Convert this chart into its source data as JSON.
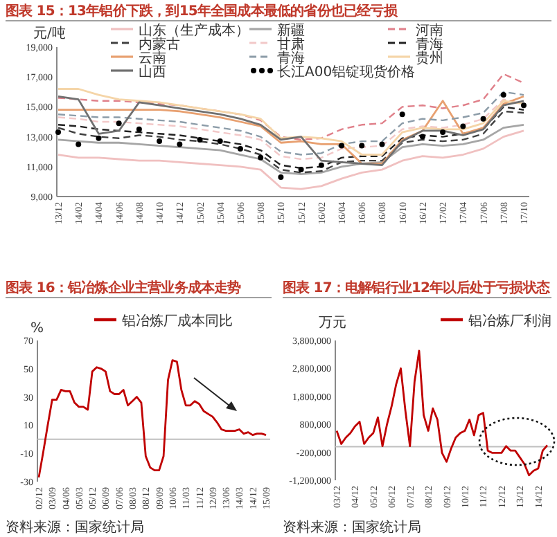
{
  "chart_data": [
    {
      "type": "line",
      "title": "图表 15：13年铝价下跌，到15年全国成本最低的省份也已经亏损",
      "ylabel": "元/吨",
      "categories": [
        "13/12",
        "14/02",
        "14/04",
        "14/06",
        "14/08",
        "14/10",
        "14/12",
        "15/02",
        "15/04",
        "15/06",
        "15/08",
        "15/10",
        "15/12",
        "16/02",
        "16/04",
        "16/06",
        "16/08",
        "16/10",
        "16/12",
        "17/02",
        "17/04",
        "17/06",
        "17/08",
        "17/10"
      ],
      "ylim": [
        9000,
        19000
      ],
      "yticks": [
        {
          "value": 9000,
          "label": "9,000"
        },
        {
          "value": 11000,
          "label": "11,000"
        },
        {
          "value": 13000,
          "label": "13,000"
        },
        {
          "value": 15000,
          "label": "15,000"
        },
        {
          "value": 17000,
          "label": "17,000"
        },
        {
          "value": 19000,
          "label": "19,000"
        }
      ],
      "legend": "top",
      "series": [
        {
          "name": "山东（生产成本）",
          "color": "#f0c0c0",
          "line_style": "solid",
          "values": [
            11800,
            11600,
            11600,
            11500,
            11400,
            11400,
            11300,
            11200,
            11100,
            11000,
            10800,
            9600,
            9500,
            9700,
            10200,
            10600,
            10800,
            11400,
            11700,
            11600,
            11800,
            12200,
            13000,
            13400
          ]
        },
        {
          "name": "新疆",
          "color": "#a6a6a6",
          "line_style": "solid",
          "values": [
            12800,
            12700,
            12600,
            12600,
            12500,
            12400,
            12300,
            12200,
            12100,
            11800,
            11500,
            10600,
            10500,
            10600,
            11000,
            11200,
            11300,
            12300,
            12500,
            12400,
            12500,
            12800,
            13600,
            13800
          ]
        },
        {
          "name": "河南",
          "color": "#e0808a",
          "line_style": "dashed",
          "values": [
            15600,
            15500,
            15400,
            15400,
            15300,
            15200,
            15100,
            14900,
            14700,
            14500,
            14100,
            13000,
            12800,
            12900,
            13500,
            13800,
            13900,
            15000,
            15100,
            14900,
            15100,
            15500,
            17200,
            16600
          ]
        },
        {
          "name": "内蒙古",
          "color": "#404040",
          "line_style": "dashed",
          "values": [
            13600,
            13200,
            13000,
            12900,
            13100,
            13000,
            12800,
            12700,
            12500,
            12200,
            11800,
            10800,
            10600,
            10700,
            11300,
            11400,
            11400,
            12600,
            12800,
            12700,
            12800,
            13200,
            14700,
            14600
          ]
        },
        {
          "name": "甘肃",
          "color": "#f2c8c8",
          "line_style": "dashed",
          "values": [
            14300,
            14200,
            14000,
            14000,
            13900,
            13800,
            13700,
            13500,
            13300,
            13100,
            12800,
            11700,
            11500,
            11600,
            12200,
            12300,
            12400,
            13500,
            13700,
            13600,
            13800,
            14200,
            15500,
            15200
          ]
        },
        {
          "name": "青海",
          "color": "#222222",
          "line_style": "dashed",
          "values": [
            13800,
            13700,
            13500,
            13400,
            13300,
            13200,
            13100,
            12900,
            12700,
            12500,
            12100,
            11100,
            10900,
            11000,
            11600,
            11700,
            11700,
            12900,
            13100,
            13000,
            13200,
            13500,
            15000,
            14800
          ]
        },
        {
          "name": "云南",
          "color": "#e8a070",
          "line_style": "solid",
          "values": [
            14800,
            14800,
            14800,
            14800,
            14800,
            14800,
            14700,
            14500,
            14300,
            14000,
            13700,
            12600,
            12700,
            12500,
            12500,
            11200,
            11200,
            12800,
            13400,
            15400,
            13200,
            13600,
            15200,
            15700
          ]
        },
        {
          "name": "青海",
          "color": "#8c9ca8",
          "line_style": "dashed",
          "values": [
            14500,
            14400,
            14300,
            14300,
            14200,
            14100,
            14000,
            13800,
            13600,
            13400,
            13000,
            12000,
            11800,
            11900,
            12500,
            12700,
            12700,
            13900,
            14200,
            14100,
            14300,
            14600,
            16000,
            15800
          ]
        },
        {
          "name": "贵州",
          "color": "#f5d5a8",
          "line_style": "solid",
          "values": [
            16200,
            16200,
            15800,
            15500,
            15400,
            15300,
            15100,
            14900,
            14700,
            14500,
            14200,
            12900,
            13000,
            12900,
            12700,
            11800,
            11800,
            13300,
            13600,
            13500,
            13500,
            13900,
            15400,
            15200
          ]
        },
        {
          "name": "山西",
          "color": "#707070",
          "line_style": "solid",
          "values": [
            15700,
            15500,
            13200,
            13400,
            15300,
            15100,
            14900,
            14700,
            14500,
            14200,
            13800,
            12800,
            13000,
            11400,
            11300,
            11200,
            11100,
            12700,
            13400,
            13400,
            13100,
            13500,
            15100,
            15400
          ]
        },
        {
          "name": "长江A00铝锭现货价格",
          "color": "#000000",
          "type": "scatter",
          "marker": "circle",
          "values": [
            13300,
            12500,
            12900,
            13900,
            13500,
            12700,
            12500,
            12800,
            12700,
            12200,
            11600,
            10300,
            10800,
            11100,
            12400,
            12400,
            12500,
            14500,
            13000,
            13300,
            13700,
            14200,
            15800,
            15100
          ]
        }
      ]
    },
    {
      "type": "line",
      "title": "图表 16：铝冶炼企业主营业务成本走势",
      "ylabel": "%",
      "categories": [
        "02/12",
        null,
        null,
        "03/09",
        null,
        null,
        "04/06",
        null,
        null,
        "05/03",
        null,
        null,
        "05/12",
        null,
        null,
        "06/09",
        null,
        null,
        "07/06",
        null,
        null,
        "08/03",
        null,
        null,
        "08/12",
        null,
        null,
        "09/09",
        null,
        null,
        "10/06",
        null,
        null,
        "11/03",
        null,
        null,
        "11/12",
        null,
        null,
        "12/09",
        null,
        null,
        "13/06",
        null,
        null,
        "14/03",
        null,
        null,
        "14/12",
        null,
        null,
        "15/09"
      ],
      "ylim": [
        -30,
        70
      ],
      "yticks": [
        -30,
        -10,
        10,
        30,
        50,
        70
      ],
      "legend": "top",
      "ref_lines": [
        {
          "axis": "y",
          "value": 0,
          "color": "#bfbfbf"
        }
      ],
      "annotations": [
        "资料来源：国家统计局"
      ],
      "series": [
        {
          "name": "铝冶炼厂成本同比",
          "color": "#c00000",
          "values": [
            -27,
            -9,
            10,
            28,
            28,
            35,
            34,
            34,
            26,
            23,
            23,
            21,
            48,
            51,
            50,
            48,
            34,
            32,
            32,
            35,
            24,
            27,
            30,
            26,
            -12,
            -20,
            -22,
            -22,
            -12,
            42,
            56,
            55,
            35,
            24,
            24,
            27,
            25,
            20,
            18,
            16,
            12,
            7,
            6,
            6,
            6,
            7,
            4,
            5,
            3,
            4,
            4,
            3
          ]
        }
      ]
    },
    {
      "type": "line",
      "title": "图表 17：电解铝行业12年以后处于亏损状态",
      "ylabel": "万元",
      "categories": [
        "03/12",
        null,
        null,
        null,
        "04/12",
        null,
        null,
        null,
        "05/12",
        null,
        null,
        null,
        "06/12",
        null,
        null,
        null,
        "07/12",
        null,
        null,
        null,
        "08/12",
        null,
        null,
        null,
        "09/12",
        null,
        null,
        null,
        "10/12",
        null,
        null,
        null,
        "11/12",
        null,
        null,
        null,
        "12/12",
        null,
        null,
        null,
        "13/12",
        null,
        null,
        null,
        "14/12",
        null,
        null
      ],
      "ylim": [
        -1200000,
        3800000
      ],
      "yticks": [
        {
          "value": -1200000,
          "label": "-1,200,000"
        },
        {
          "value": -200000,
          "label": "-200,000"
        },
        {
          "value": 800000,
          "label": "800,000"
        },
        {
          "value": 1800000,
          "label": "1,800,000"
        },
        {
          "value": 2800000,
          "label": "2,800,000"
        },
        {
          "value": 3800000,
          "label": "3,800,000"
        }
      ],
      "legend": "top",
      "ref_lines": [
        {
          "axis": "y",
          "value": 0,
          "color": "#bfbfbf"
        }
      ],
      "annotations": [
        "资料来源：国家统计局"
      ],
      "series": [
        {
          "name": "铝冶炼厂利润",
          "color": "#c00000",
          "values": [
            570000,
            100000,
            330000,
            490000,
            730000,
            890000,
            100000,
            330000,
            490000,
            1050000,
            20000,
            810000,
            1450000,
            2240000,
            2800000,
            1290000,
            20000,
            2320000,
            3430000,
            1130000,
            570000,
            1370000,
            970000,
            -220000,
            -540000,
            -60000,
            330000,
            490000,
            570000,
            970000,
            410000,
            1130000,
            1210000,
            -140000,
            -220000,
            -220000,
            -220000,
            20000,
            -140000,
            -140000,
            -380000,
            -620000,
            -1020000,
            -860000,
            -780000,
            -140000,
            50000
          ]
        }
      ]
    }
  ]
}
